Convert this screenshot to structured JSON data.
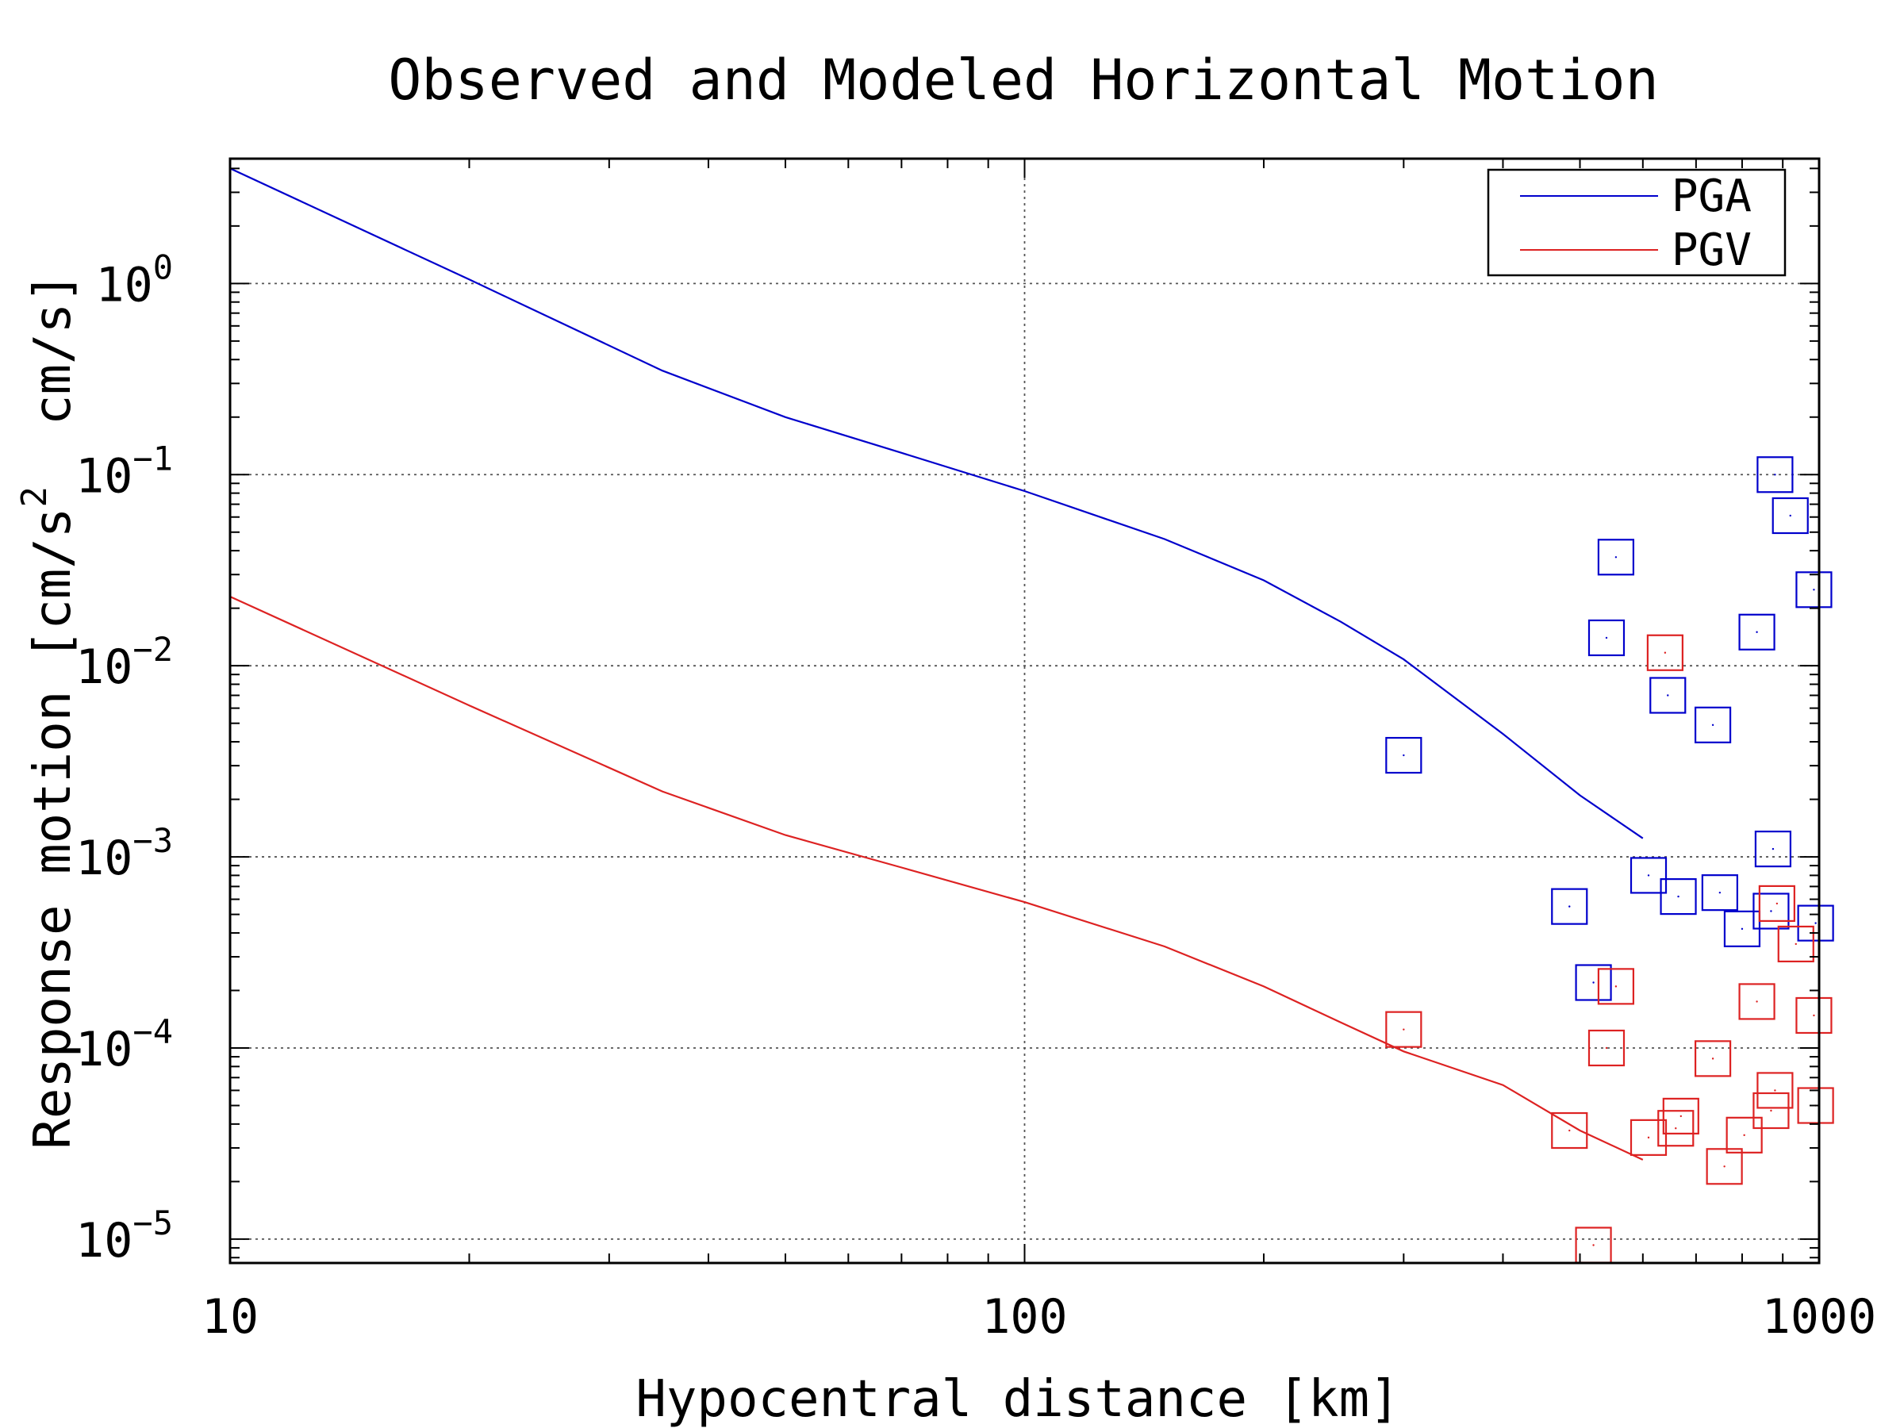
{
  "chart_data": {
    "type": "scatter",
    "title": "Observed and Modeled Horizontal Motion",
    "xlabel": "Hypocentral distance [km]",
    "ylabel": "Response motion [cm/s² cm/s]",
    "ylabel_parts": {
      "prefix": "Response motion [cm/s",
      "sup": "2",
      "suffix": "  cm/s]"
    },
    "x_scale": "log",
    "y_scale": "log",
    "xlim": [
      10,
      1000
    ],
    "ylim": [
      7.5e-06,
      4.5
    ],
    "x_ticks": [
      {
        "value": 10,
        "label": "10"
      },
      {
        "value": 100,
        "label": "100"
      },
      {
        "value": 1000,
        "label": "1000"
      }
    ],
    "y_ticks": [
      {
        "value": 1,
        "base": "10",
        "exp": "0"
      },
      {
        "value": 0.1,
        "base": "10",
        "exp": "−1"
      },
      {
        "value": 0.01,
        "base": "10",
        "exp": "−2"
      },
      {
        "value": 0.001,
        "base": "10",
        "exp": "−3"
      },
      {
        "value": 0.0001,
        "base": "10",
        "exp": "−4"
      },
      {
        "value": 1e-05,
        "base": "10",
        "exp": "−5"
      }
    ],
    "grid": true,
    "legend_position": "top-right",
    "series": [
      {
        "name": "PGA",
        "color": "#0000cc",
        "model": [
          {
            "x": 10,
            "y": 4.0
          },
          {
            "x": 20,
            "y": 1.05
          },
          {
            "x": 35,
            "y": 0.35
          },
          {
            "x": 50,
            "y": 0.2
          },
          {
            "x": 70,
            "y": 0.13
          },
          {
            "x": 100,
            "y": 0.082
          },
          {
            "x": 150,
            "y": 0.046
          },
          {
            "x": 200,
            "y": 0.028
          },
          {
            "x": 250,
            "y": 0.017
          },
          {
            "x": 300,
            "y": 0.0108
          },
          {
            "x": 400,
            "y": 0.0044
          },
          {
            "x": 500,
            "y": 0.0021
          },
          {
            "x": 600,
            "y": 0.00125
          }
        ],
        "observed": [
          {
            "x": 300,
            "y": 0.0034
          },
          {
            "x": 485,
            "y": 0.00055
          },
          {
            "x": 520,
            "y": 0.00022
          },
          {
            "x": 540,
            "y": 0.014
          },
          {
            "x": 555,
            "y": 0.037
          },
          {
            "x": 610,
            "y": 0.0008
          },
          {
            "x": 645,
            "y": 0.007
          },
          {
            "x": 665,
            "y": 0.00062
          },
          {
            "x": 735,
            "y": 0.0049
          },
          {
            "x": 750,
            "y": 0.00065
          },
          {
            "x": 800,
            "y": 0.00042
          },
          {
            "x": 835,
            "y": 0.015
          },
          {
            "x": 870,
            "y": 0.00052
          },
          {
            "x": 875,
            "y": 0.0011
          },
          {
            "x": 880,
            "y": 0.1
          },
          {
            "x": 920,
            "y": 0.061
          },
          {
            "x": 990,
            "y": 0.00045
          },
          {
            "x": 985,
            "y": 0.025
          }
        ]
      },
      {
        "name": "PGV",
        "color": "#dd2222",
        "model": [
          {
            "x": 10,
            "y": 0.023
          },
          {
            "x": 20,
            "y": 0.0062
          },
          {
            "x": 35,
            "y": 0.0022
          },
          {
            "x": 50,
            "y": 0.0013
          },
          {
            "x": 70,
            "y": 0.00088
          },
          {
            "x": 100,
            "y": 0.00058
          },
          {
            "x": 150,
            "y": 0.00034
          },
          {
            "x": 200,
            "y": 0.00021
          },
          {
            "x": 250,
            "y": 0.000136
          },
          {
            "x": 300,
            "y": 9.6e-05
          },
          {
            "x": 400,
            "y": 6.4e-05
          },
          {
            "x": 500,
            "y": 3.7e-05
          },
          {
            "x": 600,
            "y": 2.6e-05
          }
        ],
        "observed": [
          {
            "x": 300,
            "y": 0.000125
          },
          {
            "x": 485,
            "y": 3.7e-05
          },
          {
            "x": 520,
            "y": 9.3e-06
          },
          {
            "x": 540,
            "y": 0.0001
          },
          {
            "x": 555,
            "y": 0.00021
          },
          {
            "x": 610,
            "y": 3.4e-05
          },
          {
            "x": 640,
            "y": 0.0117
          },
          {
            "x": 660,
            "y": 3.8e-05
          },
          {
            "x": 670,
            "y": 4.4e-05
          },
          {
            "x": 735,
            "y": 8.8e-05
          },
          {
            "x": 760,
            "y": 2.4e-05
          },
          {
            "x": 805,
            "y": 3.5e-05
          },
          {
            "x": 835,
            "y": 0.000175
          },
          {
            "x": 870,
            "y": 4.7e-05
          },
          {
            "x": 880,
            "y": 6e-05
          },
          {
            "x": 885,
            "y": 0.00057
          },
          {
            "x": 935,
            "y": 0.00035
          },
          {
            "x": 985,
            "y": 0.000148
          },
          {
            "x": 990,
            "y": 5e-05
          }
        ]
      }
    ]
  }
}
